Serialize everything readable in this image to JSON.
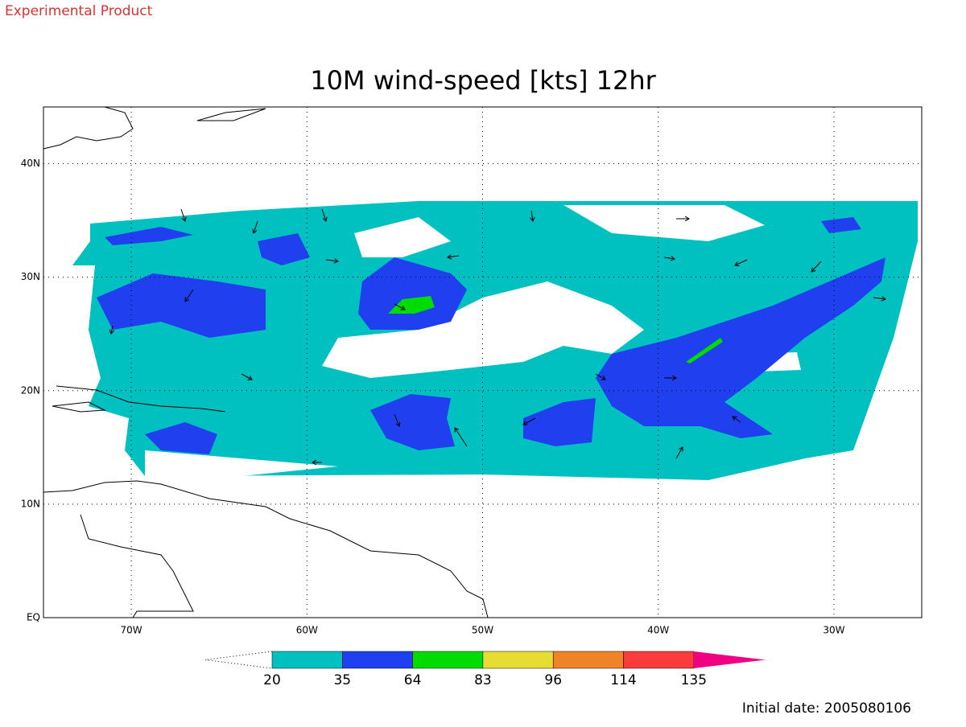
{
  "header": {
    "note": "Experimental Product",
    "title": "10M wind-speed [kts] 12hr",
    "footer": "Initial date: 2005080106"
  },
  "map": {
    "xlim": [
      -75,
      -25
    ],
    "ylim": [
      0,
      45
    ],
    "grid": true,
    "lon_ticks": [
      {
        "value": -70,
        "label": "70W"
      },
      {
        "value": -60,
        "label": "60W"
      },
      {
        "value": -50,
        "label": "50W"
      },
      {
        "value": -40,
        "label": "40W"
      },
      {
        "value": -30,
        "label": "30W"
      }
    ],
    "lat_ticks": [
      {
        "value": 0,
        "label": "EQ"
      },
      {
        "value": 10,
        "label": "10N"
      },
      {
        "value": 20,
        "label": "20N"
      },
      {
        "value": 30,
        "label": "30N"
      },
      {
        "value": 40,
        "label": "40N"
      }
    ]
  },
  "colorbar": {
    "levels": [
      20,
      35,
      64,
      83,
      96,
      114,
      135
    ],
    "colors": [
      "#00c0c0",
      "#2040f0",
      "#00dc00",
      "#e6dc32",
      "#f08228",
      "#fa3c3c",
      "#f00082"
    ]
  }
}
